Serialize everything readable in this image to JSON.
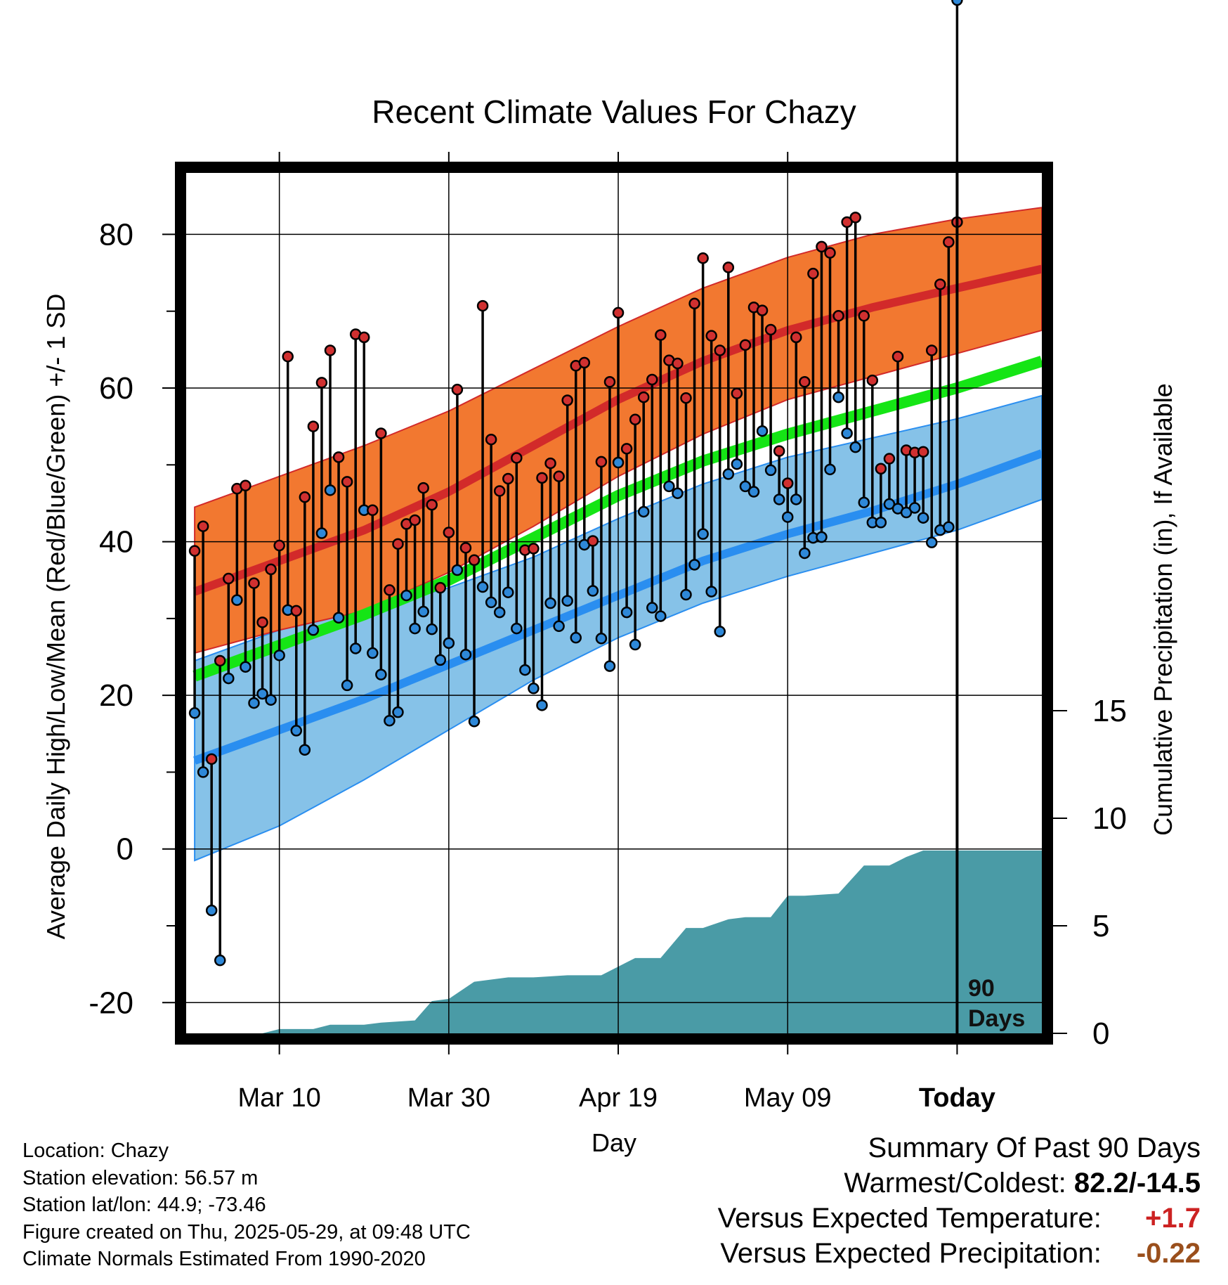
{
  "chart_data": {
    "type": "line",
    "title": "Recent Climate Values For Chazy",
    "xlabel": "Day",
    "ylabel": "Average Daily High/Low/Mean (Red/Blue/Green) +/- 1 SD",
    "y2label": "Cumulative Precipitation (in), If Available",
    "x_tick_labels": [
      "Mar 10",
      "Mar 30",
      "Apr 19",
      "May 09",
      "Today"
    ],
    "x_tick_days": [
      10,
      30,
      50,
      70,
      90
    ],
    "xlim": [
      -1,
      100
    ],
    "ylim": [
      -24,
      88
    ],
    "y_ticks": [
      -20,
      0,
      20,
      40,
      60,
      80
    ],
    "y_tick_labels": [
      "-20",
      "0",
      "20",
      "40",
      "60",
      "80"
    ],
    "y2lim": [
      0,
      40
    ],
    "y2_ticks": [
      0,
      5,
      10,
      15
    ],
    "y2_tick_labels": [
      "0",
      "5",
      "10",
      "15"
    ],
    "grid": true,
    "today_marker": {
      "day": 90,
      "label_1": "90",
      "label_2": "Days"
    },
    "colors": {
      "high_band": "#f27830",
      "high_line": "#d22a2a",
      "low_band": "#86c2e8",
      "low_line": "#2a8ef0",
      "mean_line": "#15e515",
      "precip": "#4a9ba6",
      "high_point": "#d03030",
      "low_point": "#2e88d8"
    },
    "normals": {
      "x": [
        0,
        10,
        20,
        30,
        40,
        50,
        60,
        70,
        80,
        90,
        100
      ],
      "high": [
        33.5,
        37.5,
        41.5,
        46.5,
        52.5,
        58.5,
        63.5,
        67.5,
        70.5,
        73,
        75.5
      ],
      "high_upper": [
        44.5,
        48.5,
        52.5,
        57,
        62.5,
        68,
        73,
        77,
        80,
        82,
        83.5
      ],
      "high_lower": [
        25.5,
        28.5,
        31,
        36,
        42,
        48.5,
        54,
        58.5,
        61.5,
        64.5,
        67.5
      ],
      "low": [
        11.5,
        15.5,
        19.5,
        24,
        28.5,
        33,
        37.5,
        41,
        44,
        47.5,
        51.5
      ],
      "low_upper": [
        24.5,
        28.5,
        31,
        34,
        38,
        43,
        47.5,
        51,
        53.5,
        56,
        59
      ],
      "low_lower": [
        -1.5,
        3,
        9,
        15.5,
        22,
        27.5,
        32,
        35.5,
        38.5,
        41.5,
        45.5
      ],
      "mean": [
        22.5,
        26.5,
        30.5,
        35,
        40.5,
        46,
        50.5,
        54,
        57,
        60,
        63.5
      ]
    },
    "series": [
      {
        "name": "High",
        "values": [
          38.8,
          42.0,
          11.7,
          24.5,
          35.2,
          46.9,
          47.3,
          34.6,
          29.5,
          36.4,
          39.5,
          64.1,
          31.0,
          45.8,
          55.0,
          60.7,
          64.9,
          51.0,
          47.8,
          67.0,
          66.6,
          44.1,
          54.1,
          33.7,
          39.7,
          42.3,
          42.8,
          47.0,
          44.8,
          34.0,
          41.2,
          59.8,
          39.2,
          37.6,
          70.7,
          53.3,
          46.6,
          48.2,
          50.9,
          38.9,
          39.1,
          48.3,
          50.2,
          48.5,
          58.4,
          62.9,
          63.3,
          40.1,
          50.4,
          60.8,
          69.8,
          52.1,
          55.9,
          58.8,
          61.1,
          66.9,
          63.6,
          63.2,
          58.7,
          71.0,
          76.9,
          66.8,
          64.9,
          75.7,
          59.3,
          65.6,
          70.5,
          70.1,
          67.6,
          51.8,
          47.6,
          66.6,
          60.8,
          74.9,
          78.4,
          77.6,
          69.4,
          81.6,
          82.2,
          69.4,
          61.0,
          49.5,
          50.8,
          64.1,
          51.9,
          51.6,
          51.7,
          64.9,
          73.5,
          79.0,
          81.6
        ]
      },
      {
        "name": "Low",
        "values": [
          17.7,
          10.0,
          -8.0,
          -14.5,
          22.2,
          32.4,
          23.7,
          19.0,
          20.2,
          19.4,
          25.2,
          31.1,
          15.4,
          12.9,
          28.5,
          41.1,
          46.7,
          30.1,
          21.3,
          26.1,
          44.1,
          25.5,
          22.7,
          16.7,
          17.8,
          33.0,
          28.7,
          30.9,
          28.6,
          24.6,
          26.8,
          36.3,
          25.3,
          16.6,
          34.1,
          32.1,
          30.8,
          33.4,
          28.7,
          23.3,
          20.9,
          18.7,
          32.0,
          29.0,
          32.3,
          27.5,
          39.6,
          33.6,
          27.4,
          23.8,
          50.3,
          30.8,
          26.6,
          43.9,
          31.4,
          30.3,
          47.2,
          46.3,
          33.1,
          37.0,
          41.0,
          33.5,
          28.3,
          48.8,
          50.1,
          47.2,
          46.5,
          54.4,
          49.3,
          45.5,
          43.2,
          45.5,
          38.5,
          40.5,
          40.6,
          49.4,
          58.8,
          54.1,
          52.3,
          45.1,
          42.5,
          42.5,
          44.9,
          44.3,
          43.8,
          44.4,
          43.1,
          39.9,
          41.5,
          41.9
        ]
      },
      {
        "name": "Cumulative Precipitation",
        "x": [
          0,
          8,
          10,
          14,
          16,
          20,
          22,
          26,
          28,
          30,
          33,
          35,
          37,
          40,
          44,
          48,
          50,
          52,
          55,
          58,
          60,
          63,
          65,
          68,
          70,
          72,
          76,
          79,
          82,
          84,
          86,
          88,
          100
        ],
        "values": [
          0,
          0,
          0.2,
          0.2,
          0.4,
          0.4,
          0.5,
          0.6,
          1.5,
          1.6,
          2.4,
          2.5,
          2.6,
          2.6,
          2.7,
          2.7,
          3.1,
          3.5,
          3.5,
          4.9,
          4.9,
          5.3,
          5.4,
          5.4,
          6.4,
          6.4,
          6.5,
          7.8,
          7.8,
          8.2,
          8.5,
          8.5,
          8.5
        ]
      }
    ]
  },
  "info": {
    "location": "Location: Chazy",
    "elevation": "Station elevation: 56.57 m",
    "latlon": "Station lat/lon: 44.9; -73.46",
    "created": "Figure created on Thu, 2025-05-29, at 09:48 UTC",
    "normals": "Climate Normals Estimated From 1990-2020"
  },
  "summary": {
    "title": "Summary Of Past 90 Days",
    "row1_label": "Warmest/Coldest:",
    "row1_value": "82.2/-14.5",
    "row2_label": "Versus Expected Temperature:",
    "row2_value": "+1.7",
    "row3_label": "Versus Expected Precipitation:",
    "row3_value": "-0.22"
  }
}
